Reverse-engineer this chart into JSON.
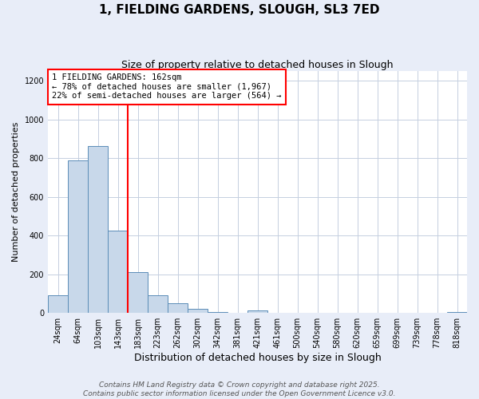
{
  "title": "1, FIELDING GARDENS, SLOUGH, SL3 7ED",
  "subtitle": "Size of property relative to detached houses in Slough",
  "xlabel": "Distribution of detached houses by size in Slough",
  "ylabel": "Number of detached properties",
  "bar_labels": [
    "24sqm",
    "64sqm",
    "103sqm",
    "143sqm",
    "183sqm",
    "223sqm",
    "262sqm",
    "302sqm",
    "342sqm",
    "381sqm",
    "421sqm",
    "461sqm",
    "500sqm",
    "540sqm",
    "580sqm",
    "620sqm",
    "659sqm",
    "699sqm",
    "739sqm",
    "778sqm",
    "818sqm"
  ],
  "bar_values": [
    90,
    790,
    865,
    425,
    210,
    90,
    50,
    20,
    5,
    0,
    15,
    0,
    0,
    0,
    0,
    0,
    0,
    0,
    0,
    0,
    5
  ],
  "bar_color": "#c8d8ea",
  "bar_edge_color": "#5b8db8",
  "vline_x_index": 3,
  "vline_color": "red",
  "ylim": [
    0,
    1250
  ],
  "yticks": [
    0,
    200,
    400,
    600,
    800,
    1000,
    1200
  ],
  "annotation_title": "1 FIELDING GARDENS: 162sqm",
  "annotation_line1": "← 78% of detached houses are smaller (1,967)",
  "annotation_line2": "22% of semi-detached houses are larger (564) →",
  "annotation_box_facecolor": "white",
  "annotation_box_edgecolor": "red",
  "footer_line1": "Contains HM Land Registry data © Crown copyright and database right 2025.",
  "footer_line2": "Contains public sector information licensed under the Open Government Licence v3.0.",
  "background_color": "#e8edf8",
  "plot_background": "white",
  "grid_color": "#c5cfe0",
  "title_fontsize": 11,
  "subtitle_fontsize": 9,
  "xlabel_fontsize": 9,
  "ylabel_fontsize": 8,
  "tick_fontsize": 7,
  "annotation_fontsize": 7.5,
  "footer_fontsize": 6.5
}
